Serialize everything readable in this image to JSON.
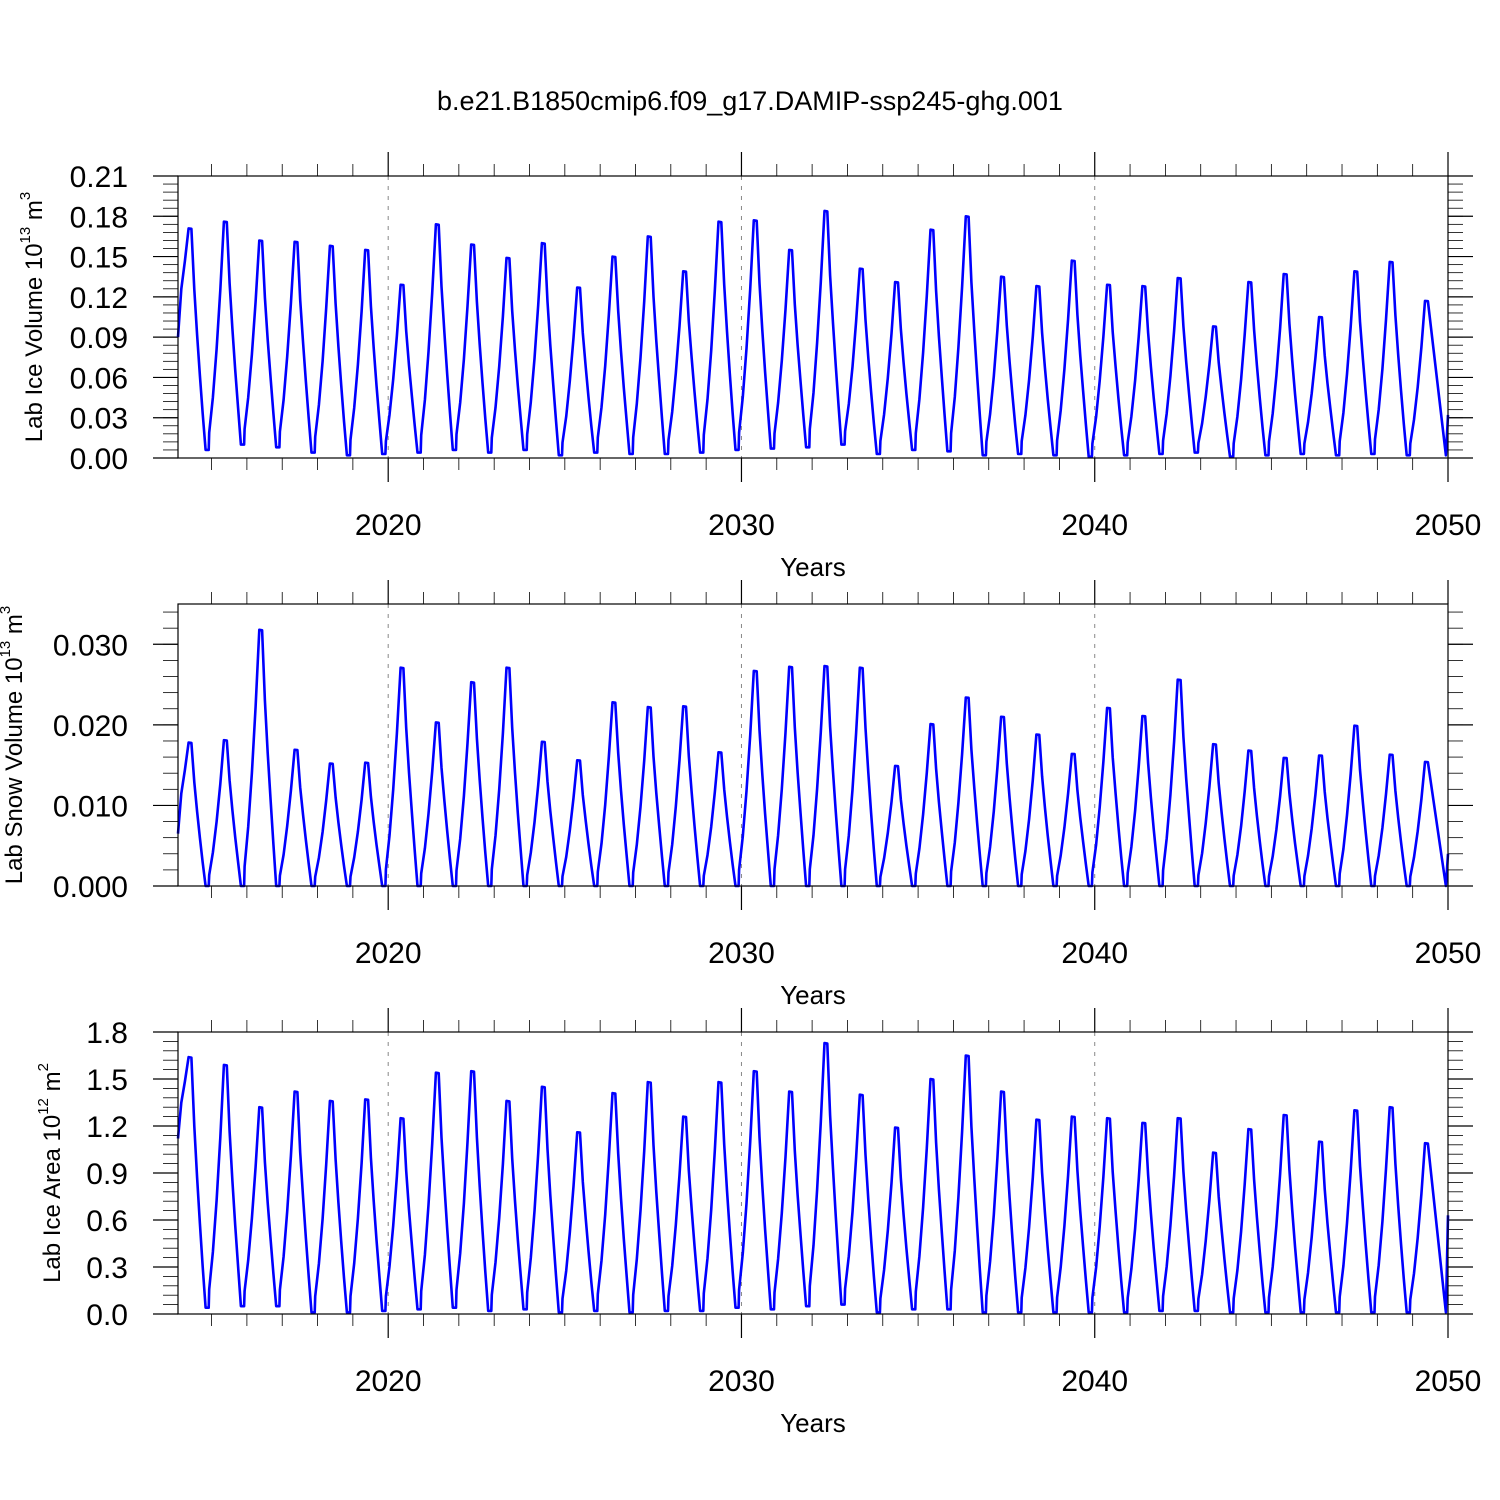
{
  "title": "b.e21.B1850cmip6.f09_g17.DAMIP-ssp245-ghg.001",
  "colors": {
    "series": "#0000ff",
    "axis": "#000000",
    "refline": "#888888"
  },
  "chart_data": [
    {
      "type": "line",
      "name": "ice-volume",
      "ylabel_main": "Lab Ice Volume 10",
      "ylabel_exp": "13",
      "ylabel_unit": " m",
      "ylabel_unit_exp": "3",
      "xlabel": "Years",
      "xlim": [
        2014.05,
        2050
      ],
      "ylim": [
        0,
        0.21
      ],
      "yticks": [
        "0.00",
        "0.03",
        "0.06",
        "0.09",
        "0.12",
        "0.15",
        "0.18",
        "0.21"
      ],
      "xticks": [
        "2020",
        "2030",
        "2040",
        "2050"
      ],
      "reference_lines_x": [
        2020,
        2030,
        2040
      ],
      "peaks": [
        0.171,
        0.176,
        0.162,
        0.161,
        0.158,
        0.155,
        0.129,
        0.174,
        0.159,
        0.149,
        0.16,
        0.127,
        0.15,
        0.165,
        0.139,
        0.176,
        0.177,
        0.155,
        0.184,
        0.141,
        0.131,
        0.17,
        0.18,
        0.135,
        0.128,
        0.147,
        0.129,
        0.128,
        0.134,
        0.098,
        0.131,
        0.137,
        0.105,
        0.139,
        0.146,
        0.117
      ],
      "minima": [
        0.006,
        0.01,
        0.008,
        0.004,
        0.002,
        0.003,
        0.004,
        0.006,
        0.004,
        0.006,
        0.002,
        0.004,
        0.003,
        0.003,
        0.004,
        0.006,
        0.007,
        0.008,
        0.01,
        0.003,
        0.006,
        0.005,
        0.002,
        0.003,
        0.002,
        0.001,
        0.002,
        0.003,
        0.004,
        0.001,
        0.002,
        0.003,
        0.002,
        0.003,
        0.002
      ],
      "start_value": 0.09,
      "end_value": 0.032
    },
    {
      "type": "line",
      "name": "snow-volume",
      "ylabel_main": "Lab Snow Volume 10",
      "ylabel_exp": "13",
      "ylabel_unit": " m",
      "ylabel_unit_exp": "3",
      "xlabel": "Years",
      "xlim": [
        2014.05,
        2050
      ],
      "ylim": [
        0,
        0.035
      ],
      "yticks": [
        "0.000",
        "0.010",
        "0.020",
        "0.030"
      ],
      "ytick_values": [
        0,
        0.01,
        0.02,
        0.03
      ],
      "xticks": [
        "2020",
        "2030",
        "2040",
        "2050"
      ],
      "reference_lines_x": [
        2020,
        2030,
        2040
      ],
      "peaks": [
        0.0178,
        0.0181,
        0.0318,
        0.0169,
        0.0152,
        0.0153,
        0.0271,
        0.0203,
        0.0253,
        0.0271,
        0.0179,
        0.0156,
        0.0228,
        0.0222,
        0.0223,
        0.0166,
        0.0267,
        0.0272,
        0.0273,
        0.0271,
        0.0149,
        0.0201,
        0.0234,
        0.021,
        0.0188,
        0.0164,
        0.0221,
        0.0211,
        0.0256,
        0.0176,
        0.0168,
        0.0159,
        0.0162,
        0.0199,
        0.0163,
        0.0154
      ],
      "minima": [
        0.0,
        0.0,
        0.0,
        0.0,
        0.0,
        0.0,
        0.0,
        0.0,
        0.0,
        0.0,
        0.0,
        0.0,
        0.0,
        0.0,
        0.0,
        0.0,
        0.0,
        0.0,
        0.0,
        0.0,
        0.0,
        0.0,
        0.0,
        0.0,
        0.0,
        0.0,
        0.0,
        0.0,
        0.0,
        0.0,
        0.0,
        0.0,
        0.0,
        0.0,
        0.0
      ],
      "start_value": 0.0065,
      "end_value": 0.004
    },
    {
      "type": "line",
      "name": "ice-area",
      "ylabel_main": "Lab Ice Area 10",
      "ylabel_exp": "12",
      "ylabel_unit": " m",
      "ylabel_unit_exp": "2",
      "xlabel": "Years",
      "xlim": [
        2014.05,
        2050
      ],
      "ylim": [
        0,
        1.8
      ],
      "yticks": [
        "0.0",
        "0.3",
        "0.6",
        "0.9",
        "1.2",
        "1.5",
        "1.8"
      ],
      "xticks": [
        "2020",
        "2030",
        "2040",
        "2050"
      ],
      "reference_lines_x": [
        2020,
        2030,
        2040
      ],
      "peaks": [
        1.64,
        1.59,
        1.32,
        1.42,
        1.36,
        1.37,
        1.25,
        1.54,
        1.55,
        1.36,
        1.45,
        1.16,
        1.41,
        1.48,
        1.26,
        1.48,
        1.55,
        1.42,
        1.73,
        1.4,
        1.19,
        1.5,
        1.65,
        1.42,
        1.24,
        1.26,
        1.25,
        1.22,
        1.25,
        1.03,
        1.18,
        1.27,
        1.1,
        1.3,
        1.32,
        1.09
      ],
      "minima": [
        0.04,
        0.05,
        0.05,
        0.01,
        0.01,
        0.02,
        0.03,
        0.04,
        0.02,
        0.03,
        0.01,
        0.02,
        0.01,
        0.02,
        0.02,
        0.04,
        0.03,
        0.05,
        0.06,
        0.01,
        0.03,
        0.03,
        0.01,
        0.01,
        0.01,
        0.01,
        0.01,
        0.02,
        0.02,
        0.01,
        0.01,
        0.01,
        0.01,
        0.01,
        0.01
      ],
      "start_value": 1.12,
      "end_value": 0.63
    }
  ]
}
